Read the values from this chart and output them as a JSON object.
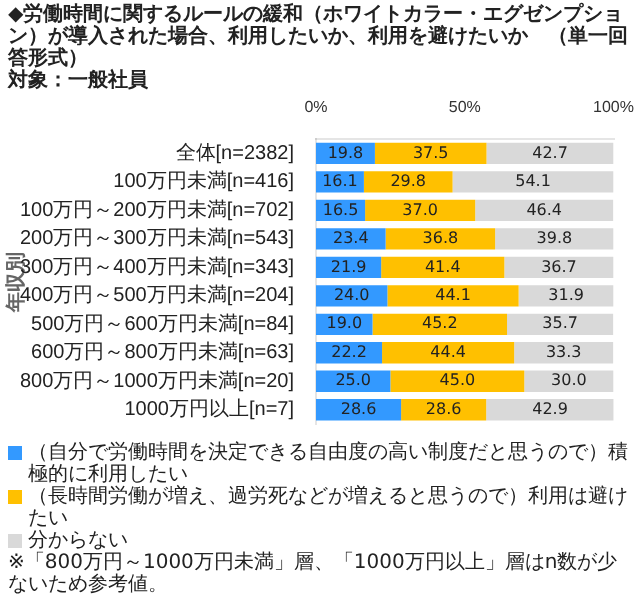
{
  "chart_data": {
    "type": "bar",
    "orientation": "horizontal",
    "stacked": true,
    "title": "◆労働時間に関するルールの緩和（ホワイトカラー・エグゼンプション）が導入された場合、利用したいか、利用を避けたいか　（単一回答形式）",
    "subtitle": "対象：一般社員",
    "ylabel": "年収別",
    "categories": [
      "全体[n=2382]",
      "100万円未満[n=416]",
      "100万円～200万円未満[n=702]",
      "200万円～300万円未満[n=543]",
      "300万円～400万円未満[n=343]",
      "400万円～500万円未満[n=204]",
      "500万円～600万円未満[n=84]",
      "600万円～800万円未満[n=63]",
      "800万円～1000万円未満[n=20]",
      "1000万円以上[n=7]"
    ],
    "series": [
      {
        "name": "（自分で労働時間を決定できる自由度の高い制度だと思うので）積極的に利用したい",
        "color": "#3399ff",
        "values": [
          19.8,
          16.1,
          16.5,
          23.4,
          21.9,
          24.0,
          19.0,
          22.2,
          25.0,
          28.6
        ],
        "value_labels": [
          "19.8",
          "16.1",
          "16.5",
          "23.4",
          "21.9",
          "24.0",
          "19.0",
          "22.2",
          "25.0",
          "28.6"
        ]
      },
      {
        "name": "（長時間労働が増え、過労死などが増えると思うので）利用は避けたい",
        "color": "#ffc000",
        "values": [
          37.5,
          29.8,
          37.0,
          36.8,
          41.4,
          44.1,
          45.2,
          44.4,
          45.0,
          28.6
        ],
        "value_labels": [
          "37.5",
          "29.8",
          "37.0",
          "36.8",
          "41.4",
          "44.1",
          "45.2",
          "44.4",
          "45.0",
          "28.6"
        ]
      },
      {
        "name": "分からない",
        "color": "#d9d9d9",
        "values": [
          42.7,
          54.1,
          46.4,
          39.8,
          36.7,
          31.9,
          35.7,
          33.3,
          30.0,
          42.9
        ],
        "value_labels": [
          "42.7",
          "54.1",
          "46.4",
          "39.8",
          "36.7",
          "31.9",
          "35.7",
          "33.3",
          "30.0",
          "42.9"
        ]
      }
    ],
    "xlim": [
      0,
      100
    ],
    "xticks": [
      {
        "value": 0,
        "label": "0%"
      },
      {
        "value": 50,
        "label": "50%"
      },
      {
        "value": 100,
        "label": "100%"
      }
    ],
    "grid": false,
    "legend": "bottom",
    "annotations": [
      "※「800万円～1000万円未満」層、「1000万円以上」層はn数が少ないため参考値。"
    ]
  }
}
